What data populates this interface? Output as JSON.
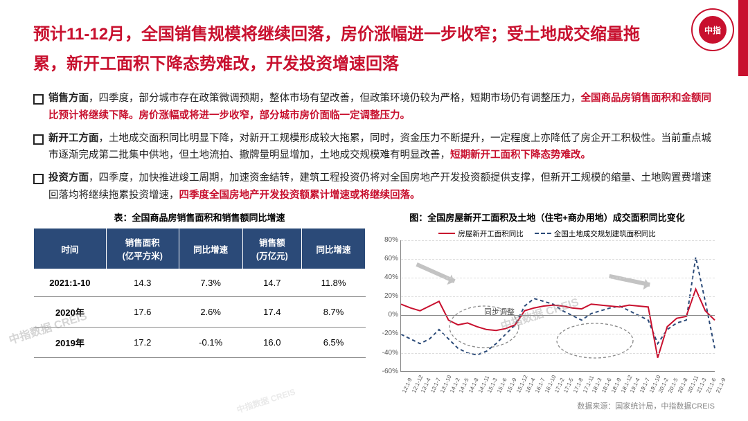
{
  "logo_text": "中指",
  "title_line1": "预计11-12月，全国销售规模将继续回落，房价涨幅进一步收窄；受土地成交缩量拖",
  "title_line2": "累，新开工面积下降态势难改，开发投资增速回落",
  "bullets": [
    {
      "lead": "销售方面",
      "plain1": "，四季度，部分城市存在政策微调预期，整体市场有望改善，但政策环境仍较为严格，短期市场仍有调整压力，",
      "red1": "全国商品房销售面积和金额同比预计将继续下降。房价涨幅或将进一步收窄，部分城市房价面临一定调整压力。"
    },
    {
      "lead": "新开工方面",
      "plain1": "，土地成交面积同比明显下降，对新开工规模形成较大拖累，同时，资金压力不断提升，一定程度上亦降低了房企开工积极性。当前重点城市逐渐完成第二批集中供地，但土地流拍、撤牌量明显增加，土地成交规模难有明显改善，",
      "red1": "短期新开工面积下降态势难改。"
    },
    {
      "lead": "投资方面",
      "plain1": "，四季度，加快推进竣工周期，加速资金结转，建筑工程投资仍将对全国房地产开发投资额提供支撑，但新开工规模的缩量、土地购置费增速回落均将继续拖累投资增速，",
      "red1": "四季度全国房地产开发投资额累计增速或将继续回落。"
    }
  ],
  "table": {
    "title": "表：全国商品房销售面积和销售额同比增速",
    "columns": [
      "时间",
      "销售面积\n(亿平方米)",
      "同比增速",
      "销售额\n(万亿元)",
      "同比增速"
    ],
    "rows": [
      [
        "2021:1-10",
        "14.3",
        "7.3%",
        "14.7",
        "11.8%"
      ],
      [
        "2020年",
        "17.6",
        "2.6%",
        "17.4",
        "8.7%"
      ],
      [
        "2019年",
        "17.2",
        "-0.1%",
        "16.0",
        "6.5%"
      ]
    ]
  },
  "chart": {
    "title": "图：全国房屋新开工面积及土地（住宅+商办用地）成交面积同比变化",
    "legend": [
      {
        "label": "房屋新开工面积同比",
        "color": "#c8102e",
        "style": "solid"
      },
      {
        "label": "全国土地成交规划建筑面积同比",
        "color": "#2b4a78",
        "style": "dashed"
      }
    ],
    "ylim": [
      -60,
      80
    ],
    "ytick_step": 20,
    "yticks": [
      "-60%",
      "-40%",
      "-20%",
      "0%",
      "20%",
      "40%",
      "60%",
      "80%"
    ],
    "xcats": [
      "12:1-9",
      "12:1-12",
      "13:1-4",
      "13:1-7",
      "13:1-10",
      "14:1-2",
      "14:1-5",
      "14:1-8",
      "14:1-11",
      "15:1-3",
      "15:1-6",
      "15:1-9",
      "15:1-12",
      "16:1-4",
      "16:1-7",
      "16:1-10",
      "17:1-2",
      "17:1-5",
      "17:1-8",
      "17:1-11",
      "18:1-3",
      "18:1-6",
      "18:1-9",
      "18:1-12",
      "19:1-4",
      "19:1-7",
      "19:1-10",
      "20:1-2",
      "20:1-5",
      "20:1-8",
      "20:1-11",
      "21:1-3",
      "21:1-6",
      "21:1-9"
    ],
    "series_red": [
      12,
      8,
      5,
      10,
      15,
      -5,
      -10,
      -8,
      -12,
      -15,
      -16,
      -14,
      -10,
      5,
      8,
      10,
      11,
      10,
      8,
      7,
      12,
      11,
      10,
      9,
      11,
      10,
      9,
      -45,
      -12,
      -3,
      -1,
      28,
      5,
      -5
    ],
    "series_blue_dashed": [
      -20,
      -25,
      -30,
      -25,
      -15,
      -25,
      -35,
      -40,
      -42,
      -38,
      -30,
      -20,
      -10,
      10,
      18,
      15,
      12,
      5,
      0,
      -5,
      2,
      5,
      8,
      10,
      5,
      0,
      -5,
      -30,
      -15,
      -8,
      -5,
      62,
      15,
      -35
    ],
    "annotation": "同步调整",
    "background_color": "#ffffff",
    "grid_color": "#dddddd"
  },
  "watermark": "中指数据 CREIS",
  "footer": "数据来源：国家统计局，中指数据CREIS"
}
